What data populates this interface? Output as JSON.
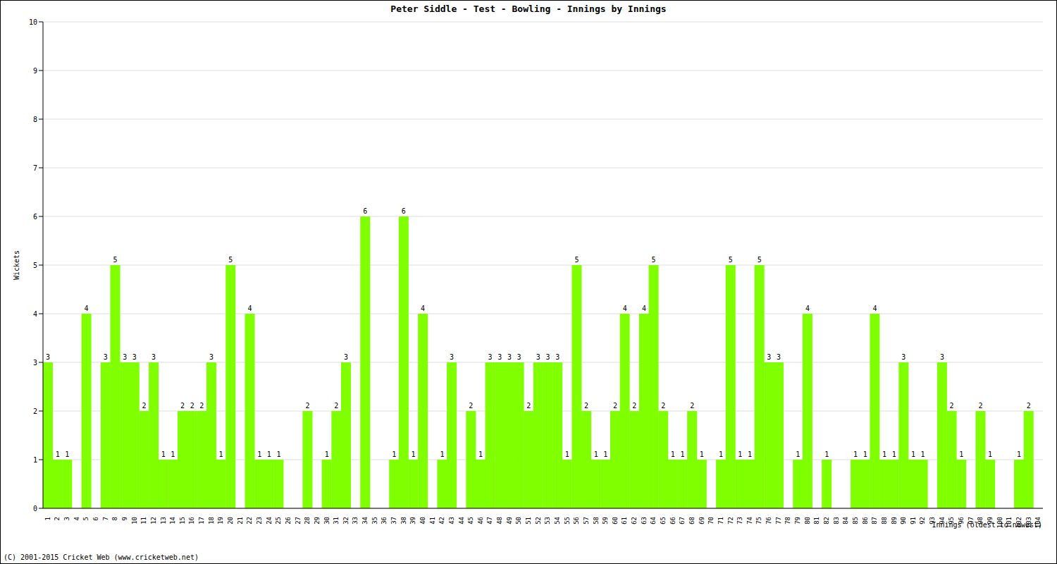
{
  "chart_data": {
    "type": "bar",
    "title": "Peter Siddle - Test - Bowling - Innings by Innings",
    "x_label": "Innings (oldest to newest)",
    "y_label": "Wickets",
    "annotations": [
      "(C) 2001-2015 Cricket Web (www.cricketweb.net)"
    ],
    "categories": [
      "1",
      "2",
      "3",
      "4",
      "5",
      "6",
      "7",
      "8",
      "9",
      "10",
      "11",
      "12",
      "13",
      "14",
      "15",
      "16",
      "17",
      "18",
      "19",
      "20",
      "21",
      "22",
      "23",
      "24",
      "25",
      "26",
      "27",
      "28",
      "29",
      "30",
      "31",
      "32",
      "33",
      "34",
      "35",
      "36",
      "37",
      "38",
      "39",
      "40",
      "41",
      "42",
      "43",
      "44",
      "45",
      "46",
      "47",
      "48",
      "49",
      "50",
      "51",
      "52",
      "53",
      "54",
      "55",
      "56",
      "57",
      "58",
      "59",
      "60",
      "61",
      "62",
      "63",
      "64",
      "65",
      "66",
      "67",
      "68",
      "69",
      "70",
      "71",
      "72",
      "73",
      "74",
      "75",
      "76",
      "77",
      "78",
      "79",
      "80",
      "81",
      "82",
      "83",
      "84",
      "85",
      "86",
      "87",
      "88",
      "89",
      "90",
      "91",
      "92",
      "93",
      "94",
      "95",
      "96",
      "97",
      "98",
      "99",
      "100",
      "101",
      "102",
      "103",
      "104"
    ],
    "values": [
      3,
      1,
      1,
      0,
      4,
      0,
      3,
      5,
      3,
      3,
      2,
      3,
      1,
      1,
      2,
      2,
      2,
      3,
      1,
      5,
      0,
      4,
      1,
      1,
      1,
      0,
      0,
      2,
      0,
      1,
      2,
      3,
      0,
      6,
      0,
      0,
      1,
      6,
      1,
      4,
      0,
      1,
      3,
      0,
      2,
      1,
      3,
      3,
      3,
      3,
      2,
      3,
      3,
      3,
      1,
      5,
      2,
      1,
      1,
      2,
      4,
      2,
      4,
      5,
      2,
      1,
      1,
      2,
      1,
      0,
      1,
      5,
      1,
      1,
      5,
      3,
      3,
      0,
      1,
      4,
      0,
      1,
      0,
      0,
      1,
      1,
      4,
      1,
      1,
      3,
      1,
      1,
      0,
      3,
      2,
      1,
      0,
      2,
      1,
      0,
      0,
      1,
      2,
      0
    ],
    "color": "#80ff00",
    "ylim": [
      0,
      10
    ],
    "yticks": [
      0,
      1,
      2,
      3,
      4,
      5,
      6,
      7,
      8,
      9,
      10
    ],
    "grid": true,
    "data_labels": true
  }
}
